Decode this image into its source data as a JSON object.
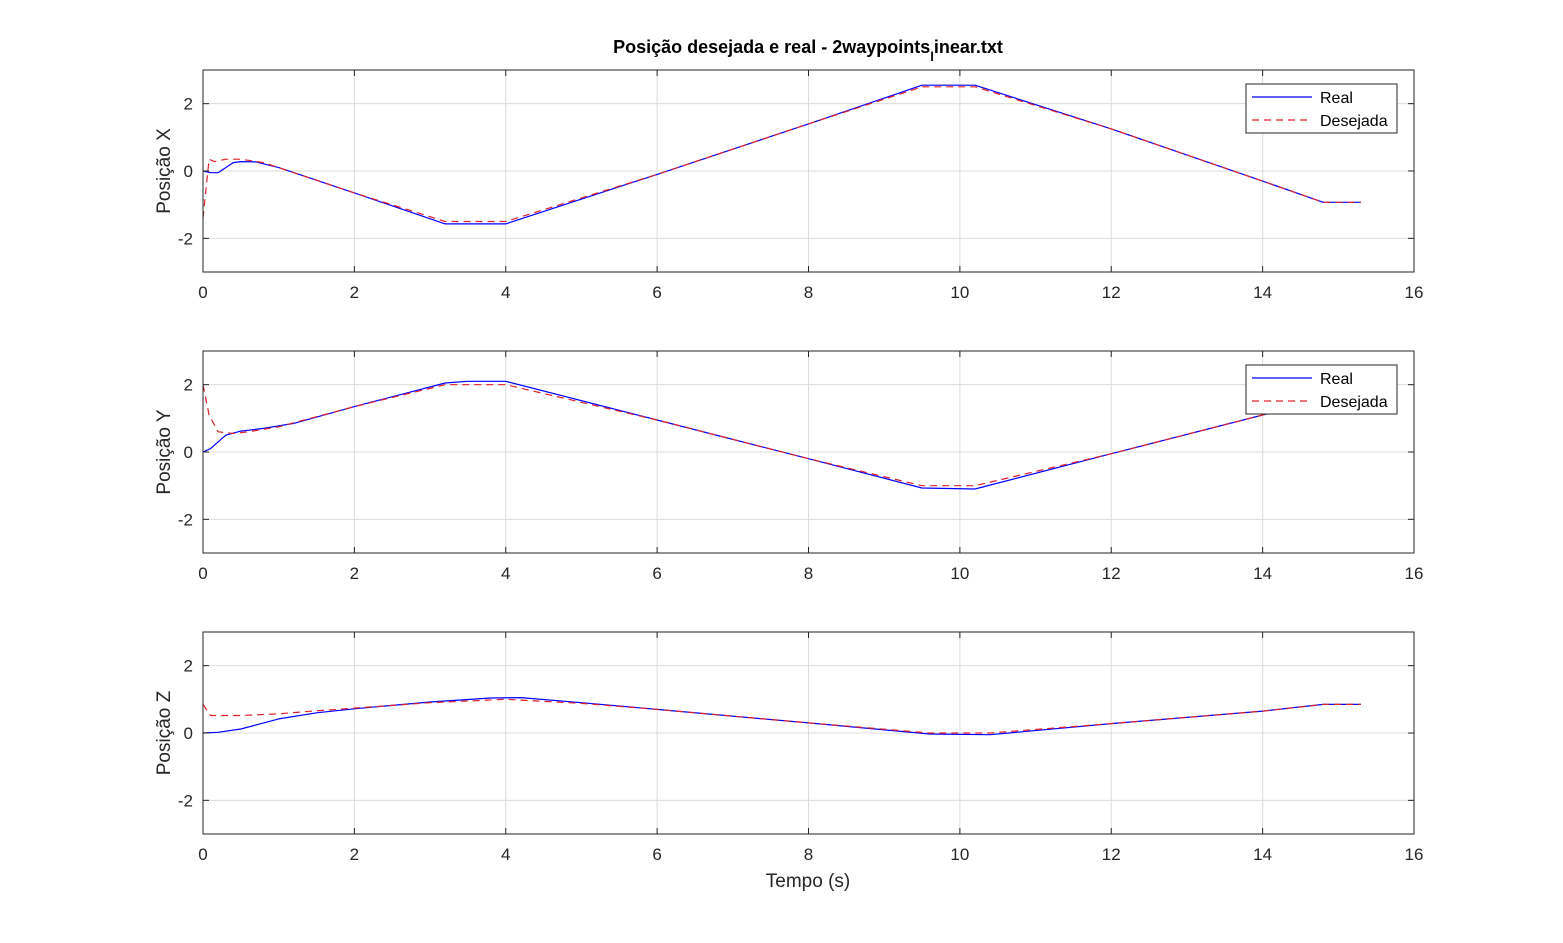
{
  "figure": {
    "title_main": "Posição desejada e real - 2waypoints",
    "title_sub": "l",
    "title_tail": "inear.txt",
    "xlabel": "Tempo (s)",
    "colors": {
      "real": "#0000ff",
      "desired": "#e0202a",
      "grid": "#dcdcdc",
      "axis": "#262626"
    }
  },
  "chart_data": [
    {
      "type": "line",
      "ylabel": "Posição X",
      "xlim": [
        0,
        16
      ],
      "ylim": [
        -3,
        3
      ],
      "xticks": [
        0,
        2,
        4,
        6,
        8,
        10,
        12,
        14,
        16
      ],
      "yticks": [
        -2,
        0,
        2
      ],
      "grid": true,
      "legend": {
        "position": "top-right",
        "entries": [
          "Real",
          "Desejada"
        ]
      },
      "series": [
        {
          "name": "Real",
          "style": "solid",
          "x": [
            0,
            0.1,
            0.2,
            0.3,
            0.4,
            0.5,
            0.7,
            1.0,
            2.0,
            3.2,
            4.0,
            6.0,
            8.0,
            9.5,
            10.2,
            12.0,
            14.0,
            14.8,
            15.3
          ],
          "y": [
            0,
            -0.05,
            -0.05,
            0.1,
            0.25,
            0.28,
            0.27,
            0.1,
            -0.65,
            -1.57,
            -1.57,
            -0.1,
            1.4,
            2.55,
            2.55,
            1.25,
            -0.3,
            -0.93,
            -0.93
          ]
        },
        {
          "name": "Desejada",
          "style": "dashed",
          "x": [
            0,
            0.08,
            0.15,
            0.3,
            0.5,
            0.8,
            1.0,
            2.0,
            3.2,
            4.0,
            6.0,
            8.0,
            9.5,
            10.2,
            12.0,
            14.0,
            14.8,
            15.3
          ],
          "y": [
            -1.4,
            0.35,
            0.28,
            0.35,
            0.35,
            0.25,
            0.1,
            -0.65,
            -1.5,
            -1.5,
            -0.1,
            1.4,
            2.5,
            2.5,
            1.25,
            -0.3,
            -0.93,
            -0.93
          ]
        }
      ]
    },
    {
      "type": "line",
      "ylabel": "Posição Y",
      "xlim": [
        0,
        16
      ],
      "ylim": [
        -3,
        3
      ],
      "xticks": [
        0,
        2,
        4,
        6,
        8,
        10,
        12,
        14,
        16
      ],
      "yticks": [
        -2,
        0,
        2
      ],
      "grid": true,
      "legend": {
        "position": "top-right",
        "entries": [
          "Real",
          "Desejada"
        ]
      },
      "series": [
        {
          "name": "Real",
          "style": "solid",
          "x": [
            0,
            0.1,
            0.2,
            0.3,
            0.5,
            0.8,
            1.2,
            2.0,
            3.2,
            3.5,
            4.0,
            6.0,
            8.0,
            9.5,
            10.2,
            12.0,
            14.0,
            14.8,
            15.3
          ],
          "y": [
            0,
            0.1,
            0.3,
            0.5,
            0.62,
            0.7,
            0.85,
            1.35,
            2.05,
            2.1,
            2.1,
            0.95,
            -0.2,
            -1.07,
            -1.1,
            -0.05,
            1.1,
            1.55,
            1.55
          ]
        },
        {
          "name": "Desejada",
          "style": "dashed",
          "x": [
            0,
            0.08,
            0.2,
            0.4,
            0.6,
            1.0,
            2.0,
            3.2,
            4.0,
            6.0,
            8.0,
            9.5,
            10.2,
            12.0,
            14.0,
            14.8,
            15.3
          ],
          "y": [
            2.0,
            1.1,
            0.6,
            0.55,
            0.6,
            0.75,
            1.35,
            2.0,
            2.0,
            0.95,
            -0.2,
            -1.0,
            -1.0,
            -0.05,
            1.1,
            1.55,
            1.55
          ]
        }
      ]
    },
    {
      "type": "line",
      "ylabel": "Posição Z",
      "xlim": [
        0,
        16
      ],
      "ylim": [
        -3,
        3
      ],
      "xticks": [
        0,
        2,
        4,
        6,
        8,
        10,
        12,
        14,
        16
      ],
      "yticks": [
        -2,
        0,
        2
      ],
      "grid": true,
      "series": [
        {
          "name": "Real",
          "style": "solid",
          "x": [
            0,
            0.2,
            0.5,
            0.8,
            1.0,
            1.5,
            2.0,
            3.0,
            3.8,
            4.2,
            5.0,
            6.0,
            8.0,
            9.6,
            10.4,
            12.0,
            14.0,
            14.8,
            15.3
          ],
          "y": [
            0,
            0.02,
            0.12,
            0.3,
            0.42,
            0.6,
            0.72,
            0.92,
            1.04,
            1.05,
            0.9,
            0.7,
            0.3,
            -0.03,
            -0.05,
            0.28,
            0.65,
            0.85,
            0.85
          ]
        },
        {
          "name": "Desejada",
          "style": "dashed",
          "x": [
            0,
            0.1,
            0.5,
            1.0,
            1.5,
            2.0,
            3.0,
            4.0,
            5.0,
            6.0,
            8.0,
            9.6,
            10.4,
            12.0,
            14.0,
            14.8,
            15.3
          ],
          "y": [
            0.85,
            0.52,
            0.52,
            0.57,
            0.66,
            0.74,
            0.9,
            1.0,
            0.88,
            0.7,
            0.3,
            0.0,
            0.0,
            0.28,
            0.65,
            0.85,
            0.85
          ]
        }
      ]
    }
  ]
}
